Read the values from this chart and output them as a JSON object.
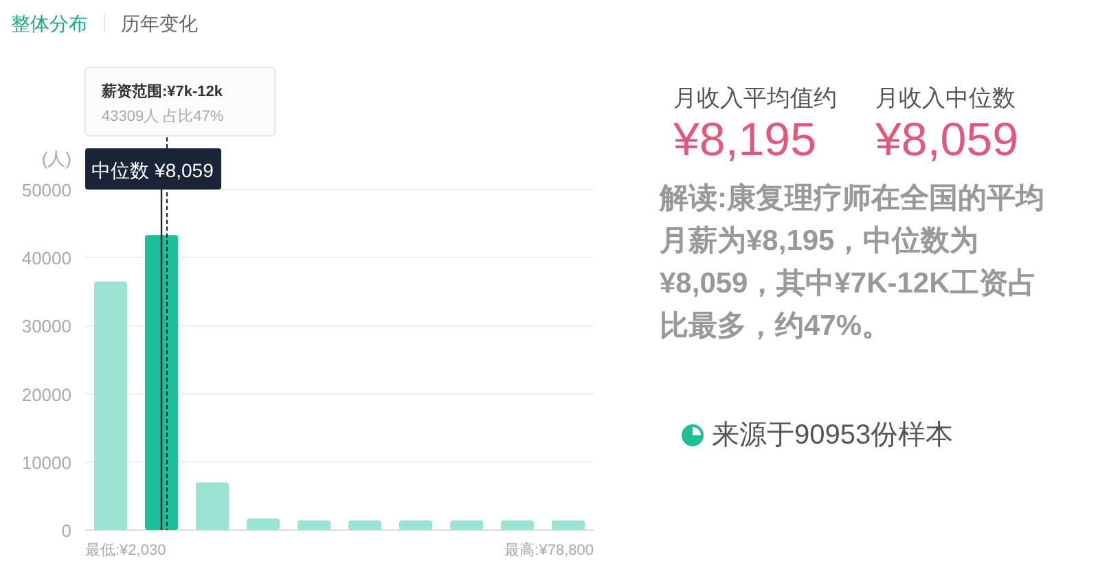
{
  "chart_data": [
    {
      "type": "bar",
      "categories": [
        null,
        null,
        null,
        null,
        null,
        null,
        null,
        null,
        null,
        null
      ],
      "series": [
        {
          "values": [
            36500,
            43309,
            7000,
            1700,
            1400,
            1400,
            1400,
            1400,
            1400,
            1400
          ],
          "colors": [
            "#9be3d3",
            "#1dbf99",
            "#9be3d3",
            "#9be3d3",
            "#9be3d3",
            "#9be3d3",
            "#9be3d3",
            "#9be3d3",
            "#9be3d3",
            "#9be3d3"
          ]
        }
      ],
      "ylabel": "(人)",
      "ylim": [
        0,
        50000
      ],
      "yticks": [
        0,
        10000,
        20000,
        30000,
        40000,
        50000
      ],
      "grid": "y",
      "annotations": [
        "整体分布",
        "历年变化",
        "薪资范围:¥7k-12k",
        "43309人  占比47%",
        "中位数 ¥8,059",
        "最低:¥2,030",
        "最高:¥78,800"
      ]
    },
    {
      "type": "other",
      "annotations": [
        "月收入平均值约",
        "¥8,195",
        "月收入中位数",
        "¥8,059",
        "解读:康复理疗师在全国的平均月薪为¥8,195，中位数为¥8,059，其中¥7K-12K工资占比最多，约47%。",
        "来源于90953份样本"
      ]
    }
  ]
}
